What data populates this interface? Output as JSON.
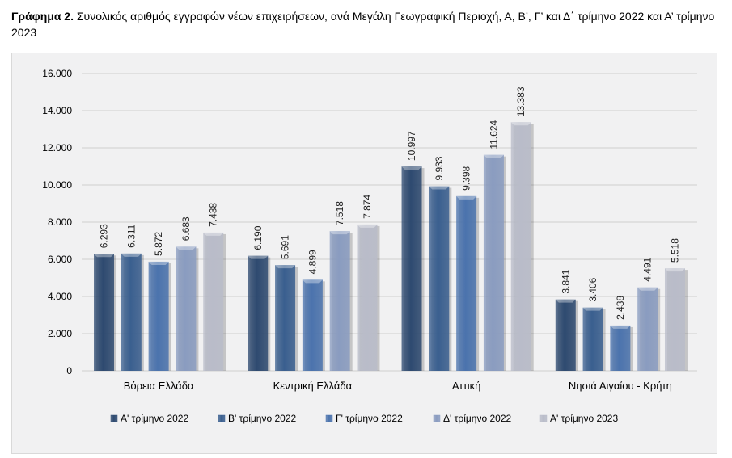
{
  "caption": {
    "prefix": "Γράφημα 2.",
    "text": "Συνολικός αριθμός εγγραφών νέων επιχειρήσεων, ανά Μεγάλη Γεωγραφική Περιοχή, Α, Β’, Γ’ και Δ΄ τρίμηνο 2022 και  Α’ τρίμηνο 2023"
  },
  "chart_data": {
    "type": "bar",
    "categories": [
      "Βόρεια Ελλάδα",
      "Κεντρική Ελλάδα",
      "Αττική",
      "Νησιά Αιγαίου - Κρήτη"
    ],
    "series": [
      {
        "name": "Α' τρίμηνο 2022",
        "color": "#2e4a70",
        "values": [
          6293,
          6190,
          10997,
          3841
        ]
      },
      {
        "name": "Β' τρίμηνο 2022",
        "color": "#3a5f8f",
        "values": [
          6311,
          5691,
          9933,
          3406
        ]
      },
      {
        "name": "Γ' τρίμηνο 2022",
        "color": "#4b73ad",
        "values": [
          5872,
          4899,
          9398,
          2438
        ]
      },
      {
        "name": "Δ' τρίμηνο 2022",
        "color": "#8a9cc0",
        "values": [
          6683,
          7518,
          11624,
          4491
        ]
      },
      {
        "name": "Α' τρίμηνο 2023",
        "color": "#b9bcc9",
        "values": [
          7438,
          7874,
          13383,
          5518
        ]
      }
    ],
    "data_labels": [
      [
        "6.293",
        "6.190",
        "10.997",
        "3.841"
      ],
      [
        "6.311",
        "5.691",
        "9.933",
        "3.406"
      ],
      [
        "5.872",
        "4.899",
        "9.398",
        "2.438"
      ],
      [
        "6.683",
        "7.518",
        "11.624",
        "4.491"
      ],
      [
        "7.438",
        "7.874",
        "13.383",
        "5.518"
      ]
    ],
    "ylim": [
      0,
      16000
    ],
    "yticks": [
      0,
      2000,
      4000,
      6000,
      8000,
      10000,
      12000,
      14000,
      16000
    ],
    "ytick_labels": [
      "0",
      "2.000",
      "4.000",
      "6.000",
      "8.000",
      "10.000",
      "12.000",
      "14.000",
      "16.000"
    ],
    "grid": true,
    "legend_position": "bottom"
  }
}
